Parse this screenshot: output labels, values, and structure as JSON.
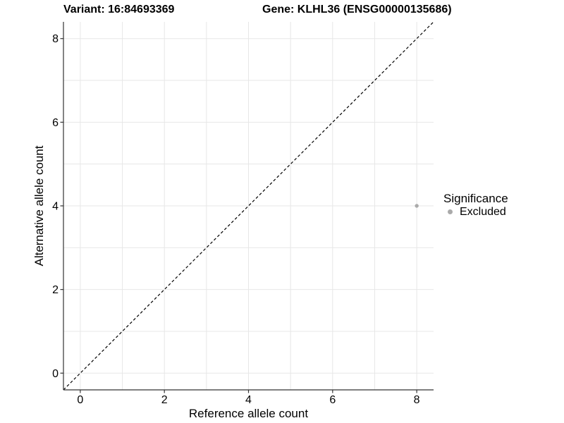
{
  "figure": {
    "title_left": "Variant: 16:84693369",
    "title_right": "Gene: KLHL36 (ENSG00000135686)"
  },
  "chart_data": {
    "type": "scatter",
    "title": "Variant: 16:84693369   Gene: KLHL36 (ENSG00000135686)",
    "xlabel": "Reference allele count",
    "ylabel": "Alternative allele count",
    "xlim": [
      -0.4,
      8.4
    ],
    "ylim": [
      -0.4,
      8.4
    ],
    "xticks": [
      0,
      2,
      4,
      6,
      8
    ],
    "yticks": [
      0,
      2,
      4,
      6,
      8
    ],
    "minor_xticks": [
      1,
      3,
      5,
      7
    ],
    "minor_yticks": [
      1,
      3,
      5,
      7
    ],
    "grid": true,
    "points": [
      {
        "x": 8,
        "y": 4,
        "significance": "Excluded"
      }
    ],
    "reference_line": {
      "slope": 1,
      "intercept": 0,
      "style": "dashed"
    },
    "legend": {
      "title": "Significance",
      "position": "right",
      "items": [
        {
          "label": "Excluded"
        }
      ]
    },
    "colors": {
      "background": "#ffffff",
      "grid": "#e7e7e7",
      "axis": "#333333",
      "text": "#000000",
      "point": "#aaaaaa",
      "reference_line": "#000000"
    }
  }
}
